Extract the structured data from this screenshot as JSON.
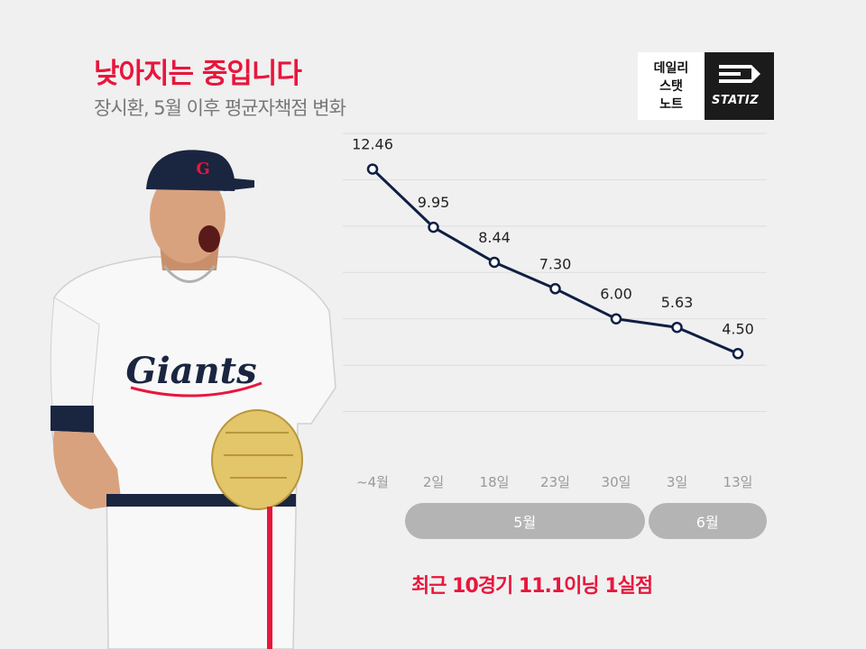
{
  "header": {
    "title": "낮아지는 중입니다",
    "subtitle": "장시환, 5월 이후 평균자책점 변화"
  },
  "badge": {
    "lines": [
      "데일리",
      "스탯",
      "노트"
    ],
    "brand": "STATIZ"
  },
  "photo": {
    "cap_logo": "G",
    "jersey_text": "Giants"
  },
  "chart_data": {
    "type": "line",
    "categories": [
      "~4월",
      "2일",
      "18일",
      "23일",
      "30일",
      "3일",
      "13일"
    ],
    "values": [
      12.46,
      9.95,
      8.44,
      7.3,
      6.0,
      5.63,
      4.5
    ],
    "value_labels": [
      "12.46",
      "9.95",
      "8.44",
      "7.30",
      "6.00",
      "5.63",
      "4.50"
    ],
    "title": "",
    "xlabel": "",
    "ylabel": "",
    "ylim": [
      0,
      14
    ],
    "grid": true,
    "colors": {
      "line": "#0f1f44",
      "marker_fill": "#ffffff",
      "grid": "#dddddd",
      "tick": "#999999",
      "label": "#222222"
    }
  },
  "month_groups": [
    {
      "label": "5월",
      "from": 1,
      "to": 4
    },
    {
      "label": "6월",
      "from": 5,
      "to": 6
    }
  ],
  "footnote": "최근 10경기 11.1이닝 1실점",
  "colors": {
    "accent": "#e8163c",
    "background": "#f0f0f0",
    "pill": "#b4b4b4",
    "badge_dark": "#1b1b1b"
  }
}
